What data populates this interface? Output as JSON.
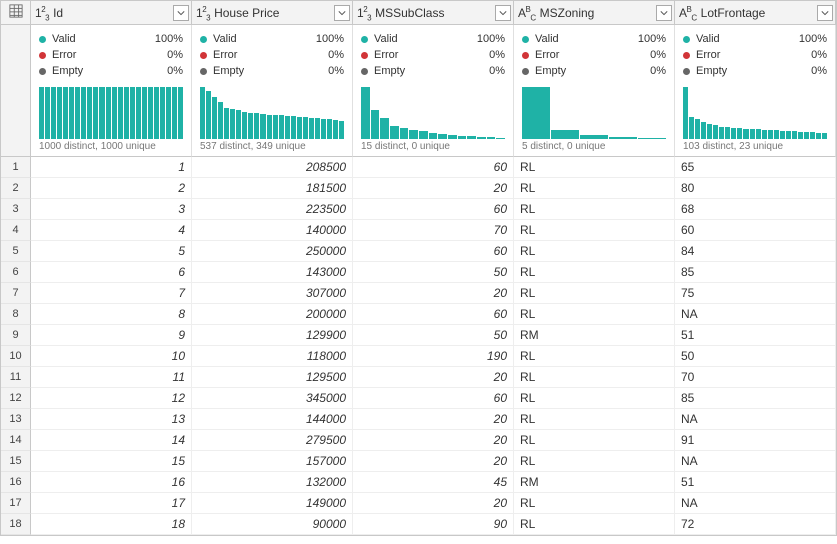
{
  "columns": [
    {
      "type_label": "num",
      "name": "Id",
      "valid": "100%",
      "error": "0%",
      "empty": "0%",
      "distinct": "1000 distinct, 1000 unique",
      "bars": [
        100,
        100,
        100,
        100,
        100,
        100,
        100,
        100,
        100,
        100,
        100,
        100,
        100,
        100,
        100,
        100,
        100,
        100,
        100,
        100,
        100,
        100,
        100,
        100
      ],
      "align": "num"
    },
    {
      "type_label": "num",
      "name": "House Price",
      "valid": "100%",
      "error": "0%",
      "empty": "0%",
      "distinct": "537 distinct, 349 unique",
      "bars": [
        100,
        92,
        80,
        72,
        60,
        58,
        55,
        52,
        50,
        50,
        48,
        47,
        46,
        46,
        44,
        44,
        42,
        42,
        40,
        40,
        38,
        38,
        36,
        35
      ],
      "align": "num"
    },
    {
      "type_label": "num",
      "name": "MSSubClass",
      "valid": "100%",
      "error": "0%",
      "empty": "0%",
      "distinct": "15 distinct, 0 unique",
      "bars": [
        100,
        55,
        40,
        25,
        22,
        18,
        15,
        12,
        10,
        8,
        6,
        5,
        4,
        3,
        2
      ],
      "align": "num"
    },
    {
      "type_label": "txt",
      "name": "MSZoning",
      "valid": "100%",
      "error": "0%",
      "empty": "0%",
      "distinct": "5 distinct, 0 unique",
      "bars": [
        100,
        18,
        8,
        4,
        2
      ],
      "align": "txt"
    },
    {
      "type_label": "txt",
      "name": "LotFrontage",
      "valid": "100%",
      "error": "0%",
      "empty": "0%",
      "distinct": "103 distinct, 23 unique",
      "bars": [
        100,
        42,
        38,
        32,
        28,
        26,
        24,
        23,
        22,
        22,
        20,
        20,
        20,
        18,
        18,
        18,
        16,
        16,
        16,
        14,
        14,
        14,
        12,
        12
      ],
      "align": "txt"
    }
  ],
  "stat_labels": {
    "valid": "Valid",
    "error": "Error",
    "empty": "Empty"
  },
  "colors": {
    "valid": "#1fb2a6",
    "error": "#d13438",
    "empty": "#666666",
    "header_bg": "#f3f3f3",
    "border": "#c8c8c8"
  },
  "rows": [
    [
      "1",
      "208500",
      "60",
      "RL",
      "65"
    ],
    [
      "2",
      "181500",
      "20",
      "RL",
      "80"
    ],
    [
      "3",
      "223500",
      "60",
      "RL",
      "68"
    ],
    [
      "4",
      "140000",
      "70",
      "RL",
      "60"
    ],
    [
      "5",
      "250000",
      "60",
      "RL",
      "84"
    ],
    [
      "6",
      "143000",
      "50",
      "RL",
      "85"
    ],
    [
      "7",
      "307000",
      "20",
      "RL",
      "75"
    ],
    [
      "8",
      "200000",
      "60",
      "RL",
      "NA"
    ],
    [
      "9",
      "129900",
      "50",
      "RM",
      "51"
    ],
    [
      "10",
      "118000",
      "190",
      "RL",
      "50"
    ],
    [
      "11",
      "129500",
      "20",
      "RL",
      "70"
    ],
    [
      "12",
      "345000",
      "60",
      "RL",
      "85"
    ],
    [
      "13",
      "144000",
      "20",
      "RL",
      "NA"
    ],
    [
      "14",
      "279500",
      "20",
      "RL",
      "91"
    ],
    [
      "15",
      "157000",
      "20",
      "RL",
      "NA"
    ],
    [
      "16",
      "132000",
      "45",
      "RM",
      "51"
    ],
    [
      "17",
      "149000",
      "20",
      "RL",
      "NA"
    ],
    [
      "18",
      "90000",
      "90",
      "RL",
      "72"
    ]
  ]
}
